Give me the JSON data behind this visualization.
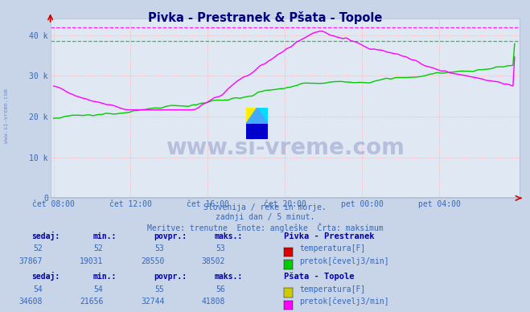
{
  "title": "Pivka - Prestranek & Pšata - Topole",
  "subtitle1": "Slovenija / reke in morje.",
  "subtitle2": "zadnji dan / 5 minut.",
  "subtitle3": "Meritve: trenutne  Enote: angleške  Črta: maksimum",
  "bg_color": "#c8d4e8",
  "plot_bg_color": "#e0e8f4",
  "x_labels": [
    "čet 08:00",
    "čet 12:00",
    "čet 16:00",
    "čet 20:00",
    "pet 00:00",
    "pet 04:00"
  ],
  "x_ticks_pos": [
    0,
    48,
    96,
    144,
    192,
    240
  ],
  "n_points": 288,
  "ylim": [
    0,
    44000
  ],
  "yticks": [
    0,
    10000,
    20000,
    30000,
    40000
  ],
  "ytick_labels": [
    "0",
    "10 k",
    "20 k",
    "30 k",
    "40 k"
  ],
  "pivka_flow_color": "#00cc00",
  "pivka_flow_max_line": 38502,
  "pivka_flow_min": 19031,
  "psata_flow_color": "#ff00ff",
  "psata_flow_max_line": 41808,
  "psata_flow_min": 21656,
  "pivka_temp_color": "#dd0000",
  "psata_temp_color": "#cccc00",
  "axis_color": "#cc0000",
  "grid_color": "#ffaaaa",
  "label_color": "#3366bb",
  "bottom_text_color": "#3366bb",
  "table_header_color": "#0000aa",
  "table_value_color": "#3366bb",
  "watermark_text": "www.si-vreme.com",
  "watermark_color": "#223388",
  "logo_colors": [
    "#ffff00",
    "#00ccff",
    "#0000cc"
  ],
  "pivka_name": "Pivka - Prestranek",
  "psata_name": "Pšata - Topole",
  "pivka_temp_sedaj": 52,
  "pivka_temp_min": 52,
  "pivka_temp_povpr": 53,
  "pivka_temp_maks": 53,
  "pivka_flow_sedaj": 37867,
  "pivka_flow_min_val": 19031,
  "pivka_flow_povpr": 28550,
  "pivka_flow_maks": 38502,
  "psata_temp_sedaj": 54,
  "psata_temp_min": 54,
  "psata_temp_povpr": 55,
  "psata_temp_maks": 56,
  "psata_flow_sedaj": 34608,
  "psata_flow_min_val": 21656,
  "psata_flow_povpr": 32744,
  "psata_flow_maks": 41808
}
